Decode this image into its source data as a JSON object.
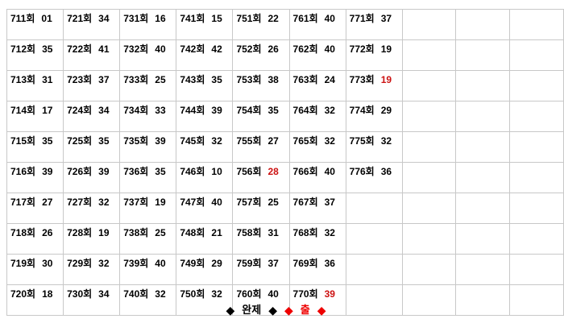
{
  "colors": {
    "background": "#ffffff",
    "grid_line": "#c8c8c8",
    "text": "#000000",
    "highlight_red": "#cc1111",
    "legend_red": "#ee0000"
  },
  "table": {
    "rows": 10,
    "columns": 10,
    "cells": [
      [
        {
          "round": "711회",
          "value": "01",
          "highlight": false
        },
        {
          "round": "721회",
          "value": "34",
          "highlight": false
        },
        {
          "round": "731회",
          "value": "16",
          "highlight": false
        },
        {
          "round": "741회",
          "value": "15",
          "highlight": false
        },
        {
          "round": "751회",
          "value": "22",
          "highlight": false
        },
        {
          "round": "761회",
          "value": "40",
          "highlight": false
        },
        {
          "round": "771회",
          "value": "37",
          "highlight": false
        },
        null,
        null,
        null
      ],
      [
        {
          "round": "712회",
          "value": "35",
          "highlight": false
        },
        {
          "round": "722회",
          "value": "41",
          "highlight": false
        },
        {
          "round": "732회",
          "value": "40",
          "highlight": false
        },
        {
          "round": "742회",
          "value": "42",
          "highlight": false
        },
        {
          "round": "752회",
          "value": "26",
          "highlight": false
        },
        {
          "round": "762회",
          "value": "40",
          "highlight": false
        },
        {
          "round": "772회",
          "value": "19",
          "highlight": false
        },
        null,
        null,
        null
      ],
      [
        {
          "round": "713회",
          "value": "31",
          "highlight": false
        },
        {
          "round": "723회",
          "value": "37",
          "highlight": false
        },
        {
          "round": "733회",
          "value": "25",
          "highlight": false
        },
        {
          "round": "743회",
          "value": "35",
          "highlight": false
        },
        {
          "round": "753회",
          "value": "38",
          "highlight": false
        },
        {
          "round": "763회",
          "value": "24",
          "highlight": false
        },
        {
          "round": "773회",
          "value": "19",
          "highlight": true
        },
        null,
        null,
        null
      ],
      [
        {
          "round": "714회",
          "value": "17",
          "highlight": false
        },
        {
          "round": "724회",
          "value": "34",
          "highlight": false
        },
        {
          "round": "734회",
          "value": "33",
          "highlight": false
        },
        {
          "round": "744회",
          "value": "39",
          "highlight": false
        },
        {
          "round": "754회",
          "value": "35",
          "highlight": false
        },
        {
          "round": "764회",
          "value": "32",
          "highlight": false
        },
        {
          "round": "774회",
          "value": "29",
          "highlight": false
        },
        null,
        null,
        null
      ],
      [
        {
          "round": "715회",
          "value": "35",
          "highlight": false
        },
        {
          "round": "725회",
          "value": "35",
          "highlight": false
        },
        {
          "round": "735회",
          "value": "39",
          "highlight": false
        },
        {
          "round": "745회",
          "value": "32",
          "highlight": false
        },
        {
          "round": "755회",
          "value": "27",
          "highlight": false
        },
        {
          "round": "765회",
          "value": "32",
          "highlight": false
        },
        {
          "round": "775회",
          "value": "32",
          "highlight": false
        },
        null,
        null,
        null
      ],
      [
        {
          "round": "716회",
          "value": "39",
          "highlight": false
        },
        {
          "round": "726회",
          "value": "39",
          "highlight": false
        },
        {
          "round": "736회",
          "value": "35",
          "highlight": false
        },
        {
          "round": "746회",
          "value": "10",
          "highlight": false
        },
        {
          "round": "756회",
          "value": "28",
          "highlight": true
        },
        {
          "round": "766회",
          "value": "40",
          "highlight": false
        },
        {
          "round": "776회",
          "value": "36",
          "highlight": false
        },
        null,
        null,
        null
      ],
      [
        {
          "round": "717회",
          "value": "27",
          "highlight": false
        },
        {
          "round": "727회",
          "value": "32",
          "highlight": false
        },
        {
          "round": "737회",
          "value": "19",
          "highlight": false
        },
        {
          "round": "747회",
          "value": "40",
          "highlight": false
        },
        {
          "round": "757회",
          "value": "25",
          "highlight": false
        },
        {
          "round": "767회",
          "value": "37",
          "highlight": false
        },
        null,
        null,
        null,
        null
      ],
      [
        {
          "round": "718회",
          "value": "26",
          "highlight": false
        },
        {
          "round": "728회",
          "value": "19",
          "highlight": false
        },
        {
          "round": "738회",
          "value": "25",
          "highlight": false
        },
        {
          "round": "748회",
          "value": "21",
          "highlight": false
        },
        {
          "round": "758회",
          "value": "31",
          "highlight": false
        },
        {
          "round": "768회",
          "value": "32",
          "highlight": false
        },
        null,
        null,
        null,
        null
      ],
      [
        {
          "round": "719회",
          "value": "30",
          "highlight": false
        },
        {
          "round": "729회",
          "value": "32",
          "highlight": false
        },
        {
          "round": "739회",
          "value": "40",
          "highlight": false
        },
        {
          "round": "749회",
          "value": "29",
          "highlight": false
        },
        {
          "round": "759회",
          "value": "37",
          "highlight": false
        },
        {
          "round": "769회",
          "value": "36",
          "highlight": false
        },
        null,
        null,
        null,
        null
      ],
      [
        {
          "round": "720회",
          "value": "18",
          "highlight": false
        },
        {
          "round": "730회",
          "value": "34",
          "highlight": false
        },
        {
          "round": "740회",
          "value": "32",
          "highlight": false
        },
        {
          "round": "750회",
          "value": "32",
          "highlight": false
        },
        {
          "round": "760회",
          "value": "40",
          "highlight": false
        },
        {
          "round": "770회",
          "value": "39",
          "highlight": true
        },
        null,
        null,
        null,
        null
      ]
    ]
  },
  "legend": {
    "items": [
      {
        "label": "◆",
        "color": "black"
      },
      {
        "label": "완제",
        "color": "black"
      },
      {
        "label": "◆",
        "color": "black"
      },
      {
        "label": "◆",
        "color": "red"
      },
      {
        "label": "출",
        "color": "red"
      },
      {
        "label": "◆",
        "color": "red"
      }
    ]
  }
}
